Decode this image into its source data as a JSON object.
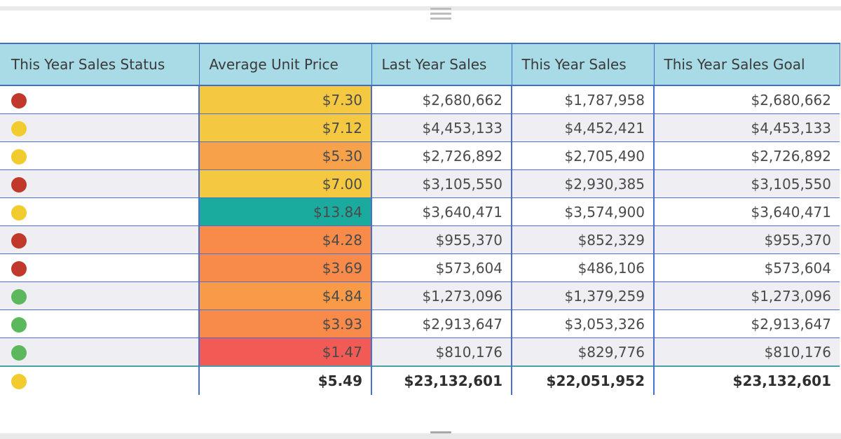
{
  "colors": {
    "status_red": "#c0392b",
    "status_yellow": "#f2cc2e",
    "status_green": "#5cb85c",
    "header_bg": "#a8dbe6"
  },
  "columns": [
    "This Year Sales Status",
    "Average Unit Price",
    "Last Year Sales",
    "This Year Sales",
    "This Year Sales Goal"
  ],
  "rows": [
    {
      "status": "red",
      "price": "$7.30",
      "price_color": "#f5c842",
      "last_year": "$2,680,662",
      "this_year": "$1,787,958",
      "goal": "$2,680,662"
    },
    {
      "status": "yellow",
      "price": "$7.12",
      "price_color": "#f5c842",
      "last_year": "$4,453,133",
      "this_year": "$4,452,421",
      "goal": "$4,453,133"
    },
    {
      "status": "yellow",
      "price": "$5.30",
      "price_color": "#f7a24a",
      "last_year": "$2,726,892",
      "this_year": "$2,705,490",
      "goal": "$2,726,892"
    },
    {
      "status": "red",
      "price": "$7.00",
      "price_color": "#f5c842",
      "last_year": "$3,105,550",
      "this_year": "$2,930,385",
      "goal": "$3,105,550"
    },
    {
      "status": "yellow",
      "price": "$13.84",
      "price_color": "#1aaa9e",
      "last_year": "$3,640,471",
      "this_year": "$3,574,900",
      "goal": "$3,640,471"
    },
    {
      "status": "red",
      "price": "$4.28",
      "price_color": "#f88a4a",
      "last_year": "$955,370",
      "this_year": "$852,329",
      "goal": "$955,370"
    },
    {
      "status": "red",
      "price": "$3.69",
      "price_color": "#f88a4a",
      "last_year": "$573,604",
      "this_year": "$486,106",
      "goal": "$573,604"
    },
    {
      "status": "green",
      "price": "$4.84",
      "price_color": "#f89a48",
      "last_year": "$1,273,096",
      "this_year": "$1,379,259",
      "goal": "$1,273,096"
    },
    {
      "status": "green",
      "price": "$3.93",
      "price_color": "#f88a4a",
      "last_year": "$2,913,647",
      "this_year": "$3,053,326",
      "goal": "$2,913,647"
    },
    {
      "status": "green",
      "price": "$1.47",
      "price_color": "#f25a55",
      "last_year": "$810,176",
      "this_year": "$829,776",
      "goal": "$810,176"
    }
  ],
  "total": {
    "status": "yellow",
    "price": "$5.49",
    "last_year": "$23,132,601",
    "this_year": "$22,051,952",
    "goal": "$23,132,601"
  }
}
